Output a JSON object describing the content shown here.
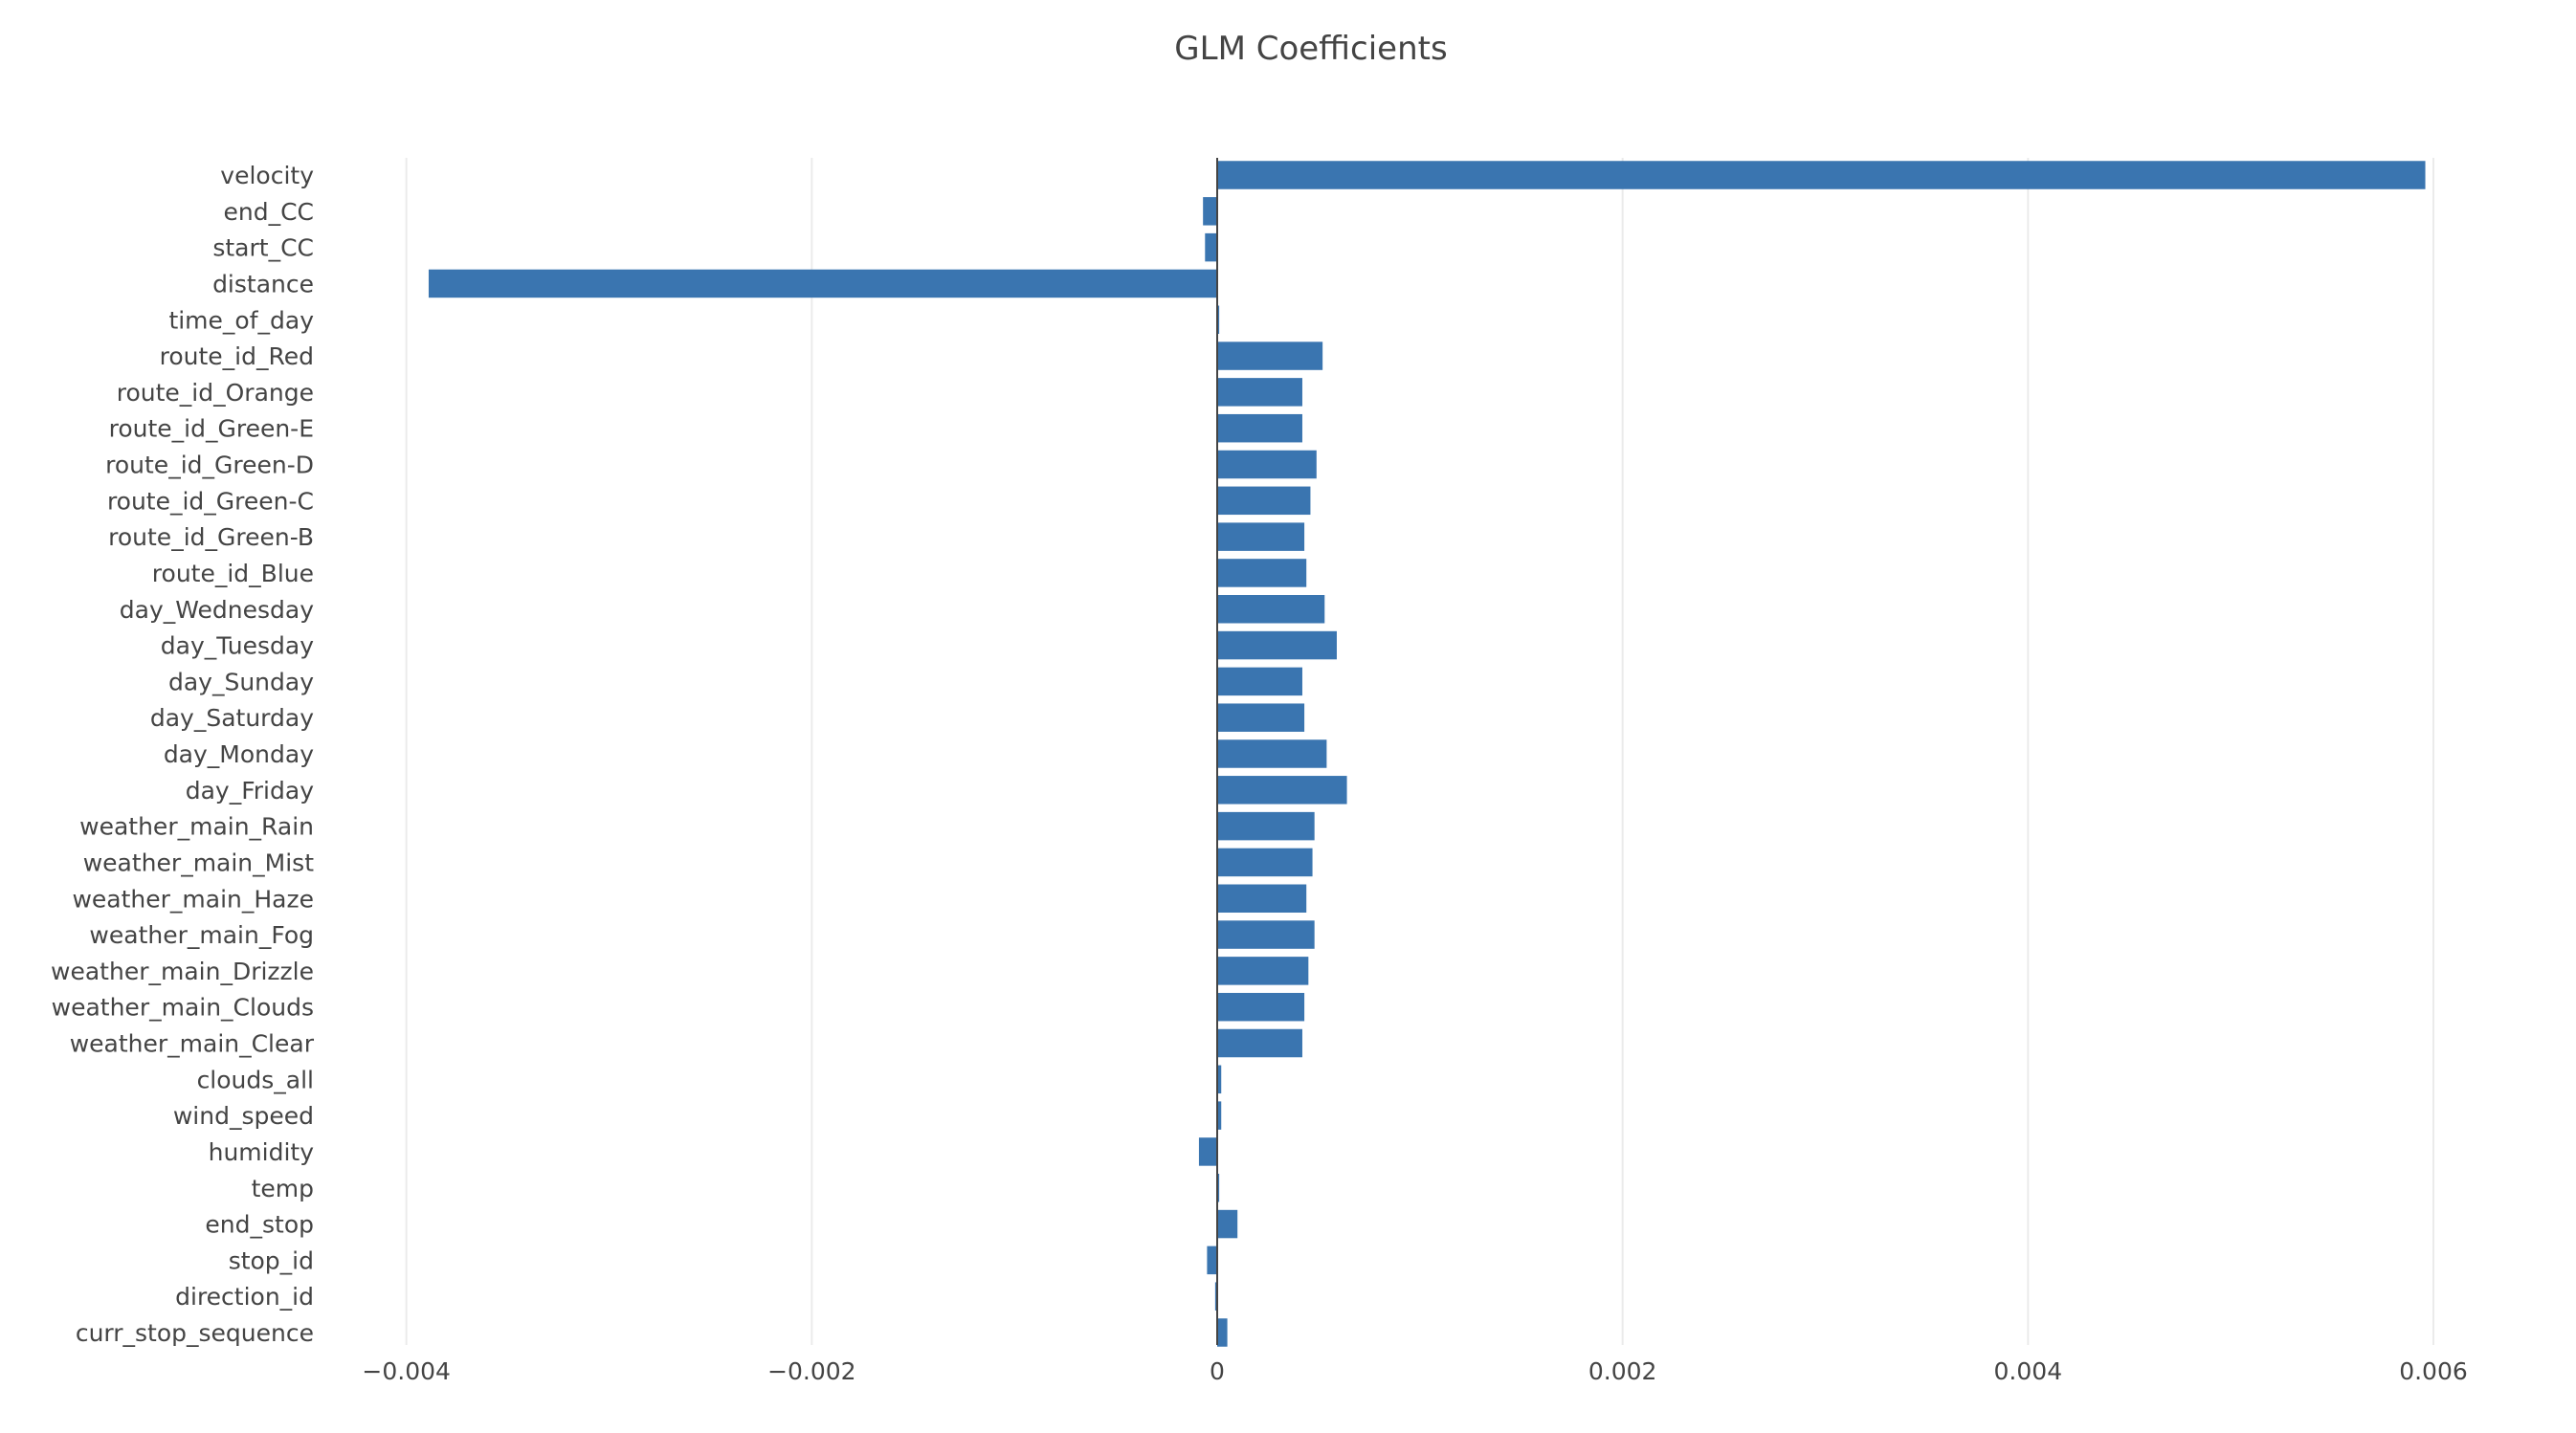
{
  "colors": {
    "bar": "#3a75b0",
    "grid": "#ebebeb",
    "zeroline": "#444444",
    "text": "#444444",
    "background": "#ffffff"
  },
  "chart_data": {
    "type": "bar",
    "orientation": "horizontal",
    "title": "GLM Coefficients",
    "xlabel": "",
    "ylabel": "",
    "xlim": [
      -0.004,
      0.006
    ],
    "x_ticks": [
      -0.004,
      -0.002,
      0,
      0.002,
      0.004,
      0.006
    ],
    "x_tick_labels": [
      "−0.004",
      "−0.002",
      "0",
      "0.002",
      "0.004",
      "0.006"
    ],
    "grid": true,
    "legend": "none",
    "categories": [
      "velocity",
      "end_CC",
      "start_CC",
      "distance",
      "time_of_day",
      "route_id_Red",
      "route_id_Orange",
      "route_id_Green-E",
      "route_id_Green-D",
      "route_id_Green-C",
      "route_id_Green-B",
      "route_id_Blue",
      "day_Wednesday",
      "day_Tuesday",
      "day_Sunday",
      "day_Saturday",
      "day_Monday",
      "day_Friday",
      "weather_main_Rain",
      "weather_main_Mist",
      "weather_main_Haze",
      "weather_main_Fog",
      "weather_main_Drizzle",
      "weather_main_Clouds",
      "weather_main_Clear",
      "clouds_all",
      "wind_speed",
      "humidity",
      "temp",
      "end_stop",
      "stop_id",
      "direction_id",
      "curr_stop_sequence"
    ],
    "values": [
      0.00596,
      -7e-05,
      -6e-05,
      -0.00389,
      1e-05,
      0.00052,
      0.00042,
      0.00042,
      0.00049,
      0.00046,
      0.00043,
      0.00044,
      0.00053,
      0.00059,
      0.00042,
      0.00043,
      0.00054,
      0.00064,
      0.00048,
      0.00047,
      0.00044,
      0.00048,
      0.00045,
      0.00043,
      0.00042,
      2e-05,
      2e-05,
      -9e-05,
      1e-05,
      0.0001,
      -5e-05,
      -1e-05,
      5e-05
    ]
  }
}
